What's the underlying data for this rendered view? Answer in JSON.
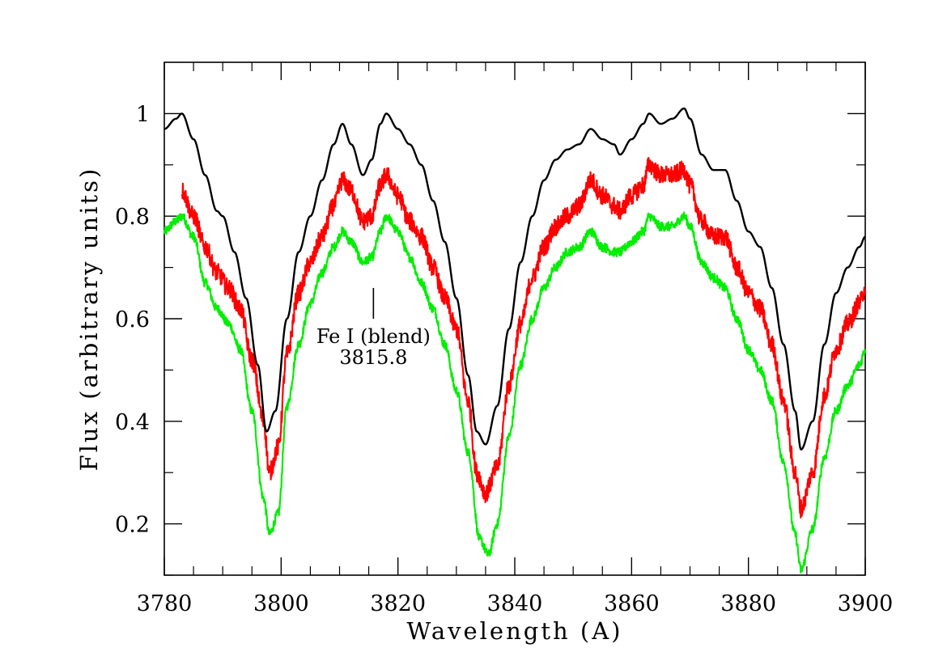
{
  "chart_data": {
    "type": "line",
    "title": "",
    "xlabel": "Wavelength (A)",
    "ylabel": "Flux (arbitrary units)",
    "xlim": [
      3780,
      3900
    ],
    "ylim": [
      0.1,
      1.1
    ],
    "xticks": [
      3780,
      3800,
      3820,
      3840,
      3860,
      3880,
      3900
    ],
    "xtick_labels": [
      "3780",
      "3800",
      "3820",
      "3840",
      "3860",
      "3880",
      "3900"
    ],
    "yticks": [
      0.2,
      0.4,
      0.6,
      0.8,
      1.0
    ],
    "ytick_labels": [
      "0.2",
      "0.4",
      "0.6",
      "0.8",
      "1"
    ],
    "grid": false,
    "series": [
      {
        "name": "black",
        "color": "#000000",
        "noise": 0.0,
        "x": [
          3780,
          3782,
          3783,
          3785,
          3787,
          3789,
          3790,
          3792,
          3794,
          3796,
          3797.5,
          3799,
          3801,
          3803,
          3805,
          3807,
          3809,
          3810.5,
          3812,
          3814,
          3815.5,
          3817,
          3818,
          3820,
          3822,
          3824,
          3826,
          3828,
          3830,
          3832,
          3833.5,
          3835,
          3837,
          3839,
          3841,
          3843,
          3845,
          3847,
          3849,
          3851,
          3853,
          3855,
          3857,
          3858,
          3860,
          3862,
          3863,
          3865,
          3867,
          3869,
          3870,
          3872,
          3874,
          3876,
          3878,
          3880,
          3882,
          3884,
          3886,
          3888,
          3889,
          3891,
          3893,
          3895,
          3897,
          3899,
          3900
        ],
        "values": [
          0.97,
          0.99,
          1.0,
          0.95,
          0.88,
          0.81,
          0.8,
          0.73,
          0.64,
          0.51,
          0.38,
          0.42,
          0.6,
          0.73,
          0.8,
          0.87,
          0.94,
          0.98,
          0.94,
          0.88,
          0.91,
          0.98,
          1.0,
          0.97,
          0.94,
          0.9,
          0.83,
          0.75,
          0.64,
          0.49,
          0.38,
          0.355,
          0.43,
          0.58,
          0.71,
          0.8,
          0.87,
          0.91,
          0.93,
          0.94,
          0.97,
          0.95,
          0.94,
          0.92,
          0.95,
          0.98,
          1.0,
          0.98,
          0.99,
          1.01,
          0.99,
          0.92,
          0.89,
          0.89,
          0.83,
          0.77,
          0.74,
          0.66,
          0.55,
          0.42,
          0.345,
          0.4,
          0.55,
          0.65,
          0.7,
          0.74,
          0.76
        ]
      },
      {
        "name": "red",
        "color": "#ff0000",
        "noise": 0.018,
        "x": [
          3783,
          3785,
          3787,
          3789,
          3791,
          3793,
          3795,
          3797,
          3798,
          3799.5,
          3801,
          3803,
          3805,
          3807,
          3809,
          3810.5,
          3812,
          3814,
          3815.5,
          3817,
          3818,
          3820,
          3822,
          3824,
          3826,
          3828,
          3830,
          3832,
          3833.5,
          3835,
          3837,
          3839,
          3841,
          3843,
          3845,
          3847,
          3849,
          3851,
          3853,
          3855,
          3857,
          3858,
          3860,
          3862,
          3863,
          3865,
          3867,
          3869,
          3870,
          3872,
          3874,
          3876,
          3878,
          3880,
          3882,
          3884,
          3886,
          3888,
          3889,
          3891,
          3893,
          3895,
          3897,
          3899,
          3900
        ],
        "values": [
          0.85,
          0.8,
          0.74,
          0.69,
          0.66,
          0.62,
          0.52,
          0.4,
          0.3,
          0.35,
          0.53,
          0.65,
          0.71,
          0.76,
          0.82,
          0.87,
          0.85,
          0.79,
          0.8,
          0.86,
          0.88,
          0.84,
          0.79,
          0.76,
          0.7,
          0.64,
          0.58,
          0.44,
          0.3,
          0.26,
          0.31,
          0.47,
          0.59,
          0.68,
          0.74,
          0.78,
          0.8,
          0.82,
          0.87,
          0.84,
          0.82,
          0.81,
          0.84,
          0.86,
          0.9,
          0.88,
          0.88,
          0.89,
          0.86,
          0.79,
          0.76,
          0.76,
          0.7,
          0.65,
          0.62,
          0.55,
          0.44,
          0.3,
          0.23,
          0.3,
          0.45,
          0.54,
          0.59,
          0.63,
          0.66
        ]
      },
      {
        "name": "green",
        "color": "#00ee00",
        "noise": 0.009,
        "x": [
          3780,
          3782,
          3783,
          3785,
          3787,
          3789,
          3791,
          3793,
          3795,
          3797,
          3798,
          3799.5,
          3801,
          3803,
          3805,
          3807,
          3809,
          3810.5,
          3812,
          3814,
          3815.5,
          3817,
          3818,
          3820,
          3822,
          3824,
          3826,
          3828,
          3830,
          3832,
          3834,
          3835.5,
          3837,
          3839,
          3841,
          3843,
          3845,
          3847,
          3849,
          3851,
          3853,
          3855,
          3857,
          3858,
          3860,
          3862,
          3863,
          3865,
          3867,
          3869,
          3870,
          3872,
          3874,
          3876,
          3878,
          3880,
          3882,
          3884,
          3886,
          3888,
          3889,
          3891,
          3893,
          3895,
          3897,
          3899,
          3900
        ],
        "values": [
          0.77,
          0.79,
          0.8,
          0.76,
          0.67,
          0.62,
          0.59,
          0.54,
          0.42,
          0.25,
          0.18,
          0.22,
          0.43,
          0.55,
          0.63,
          0.69,
          0.74,
          0.77,
          0.75,
          0.71,
          0.72,
          0.77,
          0.8,
          0.77,
          0.72,
          0.67,
          0.62,
          0.55,
          0.46,
          0.34,
          0.17,
          0.14,
          0.2,
          0.37,
          0.51,
          0.6,
          0.66,
          0.7,
          0.73,
          0.74,
          0.77,
          0.74,
          0.73,
          0.73,
          0.75,
          0.77,
          0.8,
          0.78,
          0.78,
          0.8,
          0.78,
          0.71,
          0.68,
          0.66,
          0.6,
          0.54,
          0.5,
          0.44,
          0.32,
          0.18,
          0.11,
          0.19,
          0.33,
          0.42,
          0.47,
          0.51,
          0.54
        ]
      }
    ],
    "annotations": [
      {
        "x": 3815.8,
        "y_top": 0.66,
        "y_bottom": 0.6,
        "text_line1": "Fe I (blend)",
        "text_line2": "3815.8"
      }
    ]
  }
}
